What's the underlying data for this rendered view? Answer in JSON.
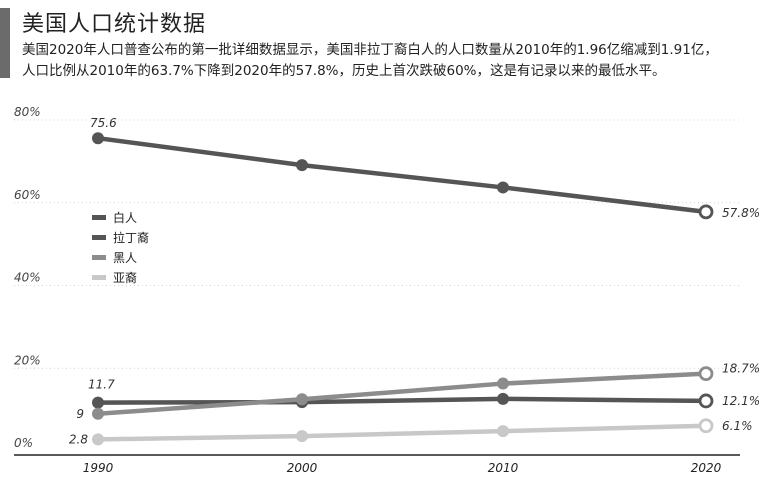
{
  "header": {
    "title": "美国人口统计数据",
    "subtitle_line1": "美国2020年人口普查公布的第一批详细数据显示，美国非拉丁裔白人的人口数量从2010年的1.96亿缩减到1.91亿，",
    "subtitle_line2": "人口比例从2010年的63.7%下降到2020年的57.8%，历史上首次跌破60%，这是有记录以来的最低水平。",
    "accent_color": "#6b6b6b"
  },
  "chart_data": {
    "type": "line",
    "categories": [
      "1990",
      "2000",
      "2010",
      "2020"
    ],
    "ylim": [
      0,
      80
    ],
    "yticks": [
      {
        "value": 0,
        "label": "0%"
      },
      {
        "value": 20,
        "label": "20%"
      },
      {
        "value": 40,
        "label": "40%"
      },
      {
        "value": 60,
        "label": "60%"
      },
      {
        "value": 80,
        "label": "80%"
      }
    ],
    "grid": true,
    "legend_position": "left-middle",
    "series": [
      {
        "name": "白人",
        "color": "#555555",
        "values": [
          75.6,
          69.1,
          63.7,
          57.8
        ],
        "start_label": "75.6",
        "end_label": "57.8%"
      },
      {
        "name": "拉丁裔",
        "color": "#555555",
        "values": [
          11.7,
          11.8,
          12.6,
          12.1
        ],
        "start_label": "11.7",
        "end_label": "12.1%"
      },
      {
        "name": "黑人",
        "color": "#8c8c8c",
        "values": [
          9.0,
          12.5,
          16.3,
          18.7
        ],
        "start_label": "9",
        "end_label": "18.7%"
      },
      {
        "name": "亚裔",
        "color": "#c8c8c8",
        "values": [
          2.8,
          3.6,
          4.8,
          6.1
        ],
        "start_label": "2.8",
        "end_label": "6.1%"
      }
    ]
  }
}
